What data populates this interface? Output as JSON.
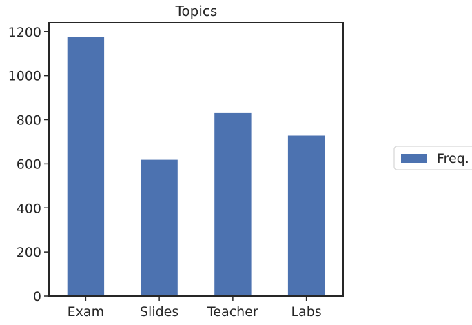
{
  "chart_data": {
    "type": "bar",
    "title": "Topics",
    "xlabel": "",
    "ylabel": "",
    "categories": [
      "Exam",
      "Slides",
      "Teacher",
      "Labs"
    ],
    "series": [
      {
        "name": "Freq.",
        "values": [
          1175,
          618,
          830,
          728
        ],
        "color": "#4c72b0"
      }
    ],
    "ylim": [
      0,
      1240
    ],
    "yticks": [
      0,
      200,
      400,
      600,
      800,
      1000,
      1200
    ],
    "grid": false,
    "legend": {
      "placement": "right, outside plot",
      "entries": [
        "Freq."
      ]
    }
  }
}
